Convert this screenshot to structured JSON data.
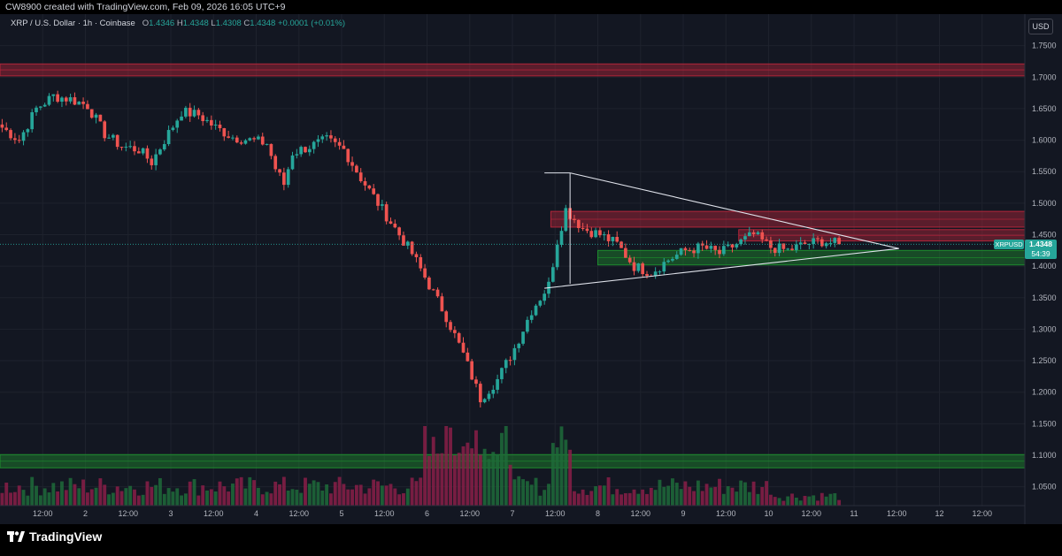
{
  "header": {
    "attribution": "CW8900 created with TradingView.com, Feb 09, 2026 16:05 UTC+9"
  },
  "legend": {
    "symbol": "XRP / U.S. Dollar · 1h · Coinbase",
    "o_label": "O",
    "o_value": "1.4346",
    "h_label": "H",
    "h_value": "1.4348",
    "l_label": "L",
    "l_value": "1.4308",
    "c_label": "C",
    "c_value": "1.4348",
    "change": "+0.0001 (+0.01%)"
  },
  "currency": "USD",
  "last_price": {
    "symbol": "XRPUSD",
    "value": "1.4348",
    "countdown": "54:39"
  },
  "brand": {
    "name": "TradingView"
  },
  "colors": {
    "bull": "#26a69a",
    "bear": "#ef5350",
    "resistance_zone": "#b2253a",
    "support_zone": "#1e8c2e",
    "triangle": "#e0e3eb"
  },
  "chart_data": {
    "type": "candlestick",
    "title": "",
    "ylim": [
      1.02,
      1.8
    ],
    "y_ticks": [
      "1.7500",
      "1.7000",
      "1.6500",
      "1.6000",
      "1.5500",
      "1.5000",
      "1.4500",
      "1.4000",
      "1.3500",
      "1.3000",
      "1.2500",
      "1.2000",
      "1.1500",
      "1.1000",
      "1.0500"
    ],
    "x_ticks": [
      "12:00",
      "2",
      "12:00",
      "3",
      "12:00",
      "4",
      "12:00",
      "5",
      "12:00",
      "6",
      "12:00",
      "7",
      "12:00",
      "8",
      "12:00",
      "9",
      "12:00",
      "10",
      "12:00",
      "11",
      "12:00",
      "12",
      "12:00"
    ],
    "trend": [
      [
        0,
        1.62
      ],
      [
        4,
        1.6
      ],
      [
        8,
        1.65
      ],
      [
        12,
        1.67
      ],
      [
        16,
        1.665
      ],
      [
        20,
        1.655
      ],
      [
        24,
        1.61
      ],
      [
        28,
        1.59
      ],
      [
        32,
        1.585
      ],
      [
        35,
        1.565
      ],
      [
        38,
        1.6
      ],
      [
        42,
        1.645
      ],
      [
        46,
        1.64
      ],
      [
        50,
        1.62
      ],
      [
        54,
        1.605
      ],
      [
        58,
        1.6
      ],
      [
        62,
        1.595
      ],
      [
        64,
        1.555
      ],
      [
        66,
        1.53
      ],
      [
        68,
        1.58
      ],
      [
        72,
        1.59
      ],
      [
        76,
        1.6
      ],
      [
        80,
        1.585
      ],
      [
        84,
        1.54
      ],
      [
        88,
        1.5
      ],
      [
        92,
        1.46
      ],
      [
        96,
        1.42
      ],
      [
        100,
        1.37
      ],
      [
        104,
        1.32
      ],
      [
        108,
        1.26
      ],
      [
        112,
        1.19
      ],
      [
        116,
        1.22
      ],
      [
        120,
        1.27
      ],
      [
        124,
        1.33
      ],
      [
        128,
        1.37
      ],
      [
        130,
        1.44
      ],
      [
        132,
        1.49
      ],
      [
        136,
        1.46
      ],
      [
        140,
        1.45
      ],
      [
        144,
        1.435
      ],
      [
        148,
        1.4
      ],
      [
        152,
        1.39
      ],
      [
        156,
        1.41
      ],
      [
        160,
        1.425
      ],
      [
        164,
        1.43
      ],
      [
        168,
        1.42
      ],
      [
        172,
        1.435
      ],
      [
        176,
        1.45
      ],
      [
        180,
        1.43
      ],
      [
        184,
        1.425
      ],
      [
        188,
        1.435
      ],
      [
        192,
        1.44
      ],
      [
        196,
        1.4348
      ]
    ],
    "zones": [
      {
        "kind": "resistance",
        "y1": 1.702,
        "y2": 1.721,
        "x_start": 0
      },
      {
        "kind": "resistance",
        "y1": 1.462,
        "y2": 1.487,
        "x_start": 129
      },
      {
        "kind": "resistance",
        "y1": 1.44,
        "y2": 1.458,
        "x_start": 173
      },
      {
        "kind": "support",
        "y1": 1.402,
        "y2": 1.425,
        "x_start": 140
      },
      {
        "kind": "support",
        "y1": 1.08,
        "y2": 1.101,
        "x_start": 0
      }
    ],
    "triangle": {
      "upper": [
        [
          133,
          1.548
        ],
        [
          210,
          1.428
        ]
      ],
      "lower": [
        [
          127,
          1.365
        ],
        [
          210,
          1.428
        ]
      ],
      "tick_upper": [
        [
          127,
          1.548
        ],
        [
          133,
          1.548
        ]
      ]
    }
  }
}
